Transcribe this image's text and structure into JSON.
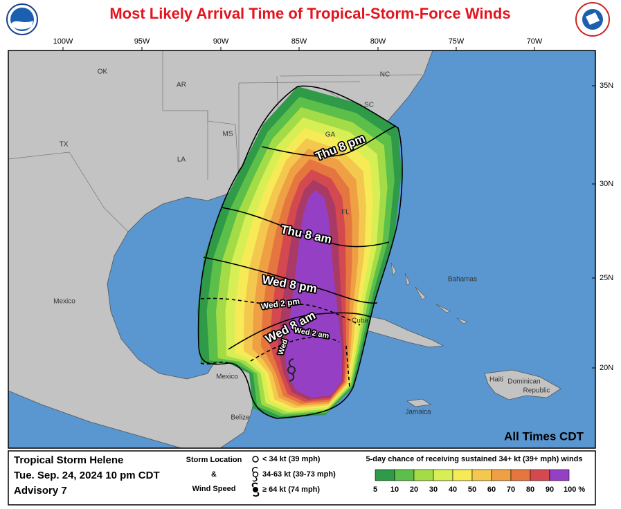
{
  "header": {
    "title": "Most Likely Arrival Time of Tropical-Storm-Force Winds"
  },
  "map": {
    "longitude_labels": [
      "100W",
      "95W",
      "90W",
      "85W",
      "80W",
      "75W",
      "70W"
    ],
    "latitude_labels": [
      "35N",
      "30N",
      "25N",
      "20N"
    ],
    "place_labels": [
      "OK",
      "AR",
      "MS",
      "TX",
      "LA",
      "GA",
      "SC",
      "NC",
      "FL",
      "Mexico",
      "Cuba",
      "Bahamas",
      "Haiti",
      "Dominican",
      "Republic",
      "Jamaica",
      "Belize",
      "Mexico"
    ],
    "arrival_labels": [
      "Thu 8 pm",
      "Thu 8 am",
      "Wed 8 pm",
      "Wed 2 pm",
      "Wed 8 am",
      "Wed 2 am",
      "Wed"
    ],
    "note": "All Times CDT"
  },
  "legend": {
    "storm_name": "Tropical Storm Helene",
    "date": "Tue. Sep. 24, 2024  10 pm CDT",
    "advisory": "Advisory 7",
    "symbol_title": [
      "Storm Location",
      "&",
      "Wind Speed"
    ],
    "symbols": [
      "< 34 kt (39 mph)",
      "34-63 kt (39-73 mph)",
      "≥ 64 kt (74 mph)"
    ],
    "scale_title": "5-day chance of receiving sustained 34+ kt (39+ mph) winds",
    "scale_labels": [
      "5",
      "10",
      "20",
      "30",
      "40",
      "50",
      "60",
      "70",
      "80",
      "90",
      "100 %"
    ]
  }
}
